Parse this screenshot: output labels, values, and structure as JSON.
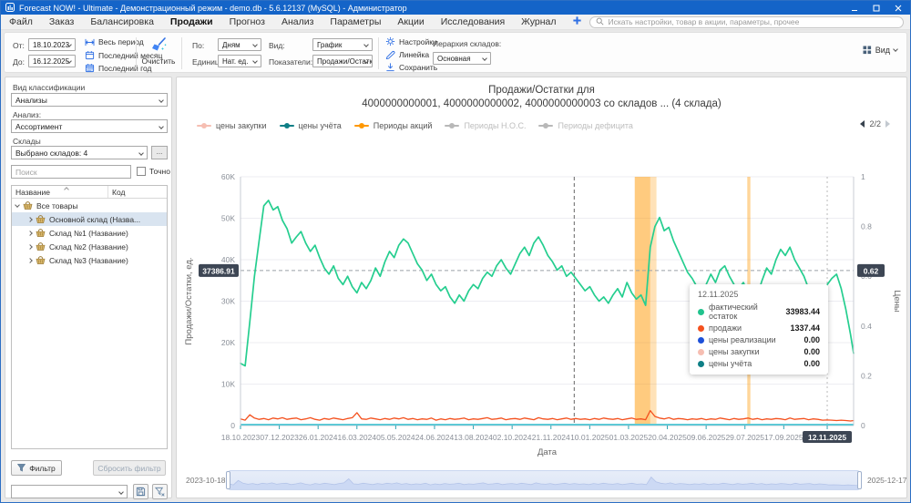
{
  "window": {
    "title": "Forecast NOW! - Ultimate - Демонстрационный режим - demo.db - 5.6.12137 (MySQL) - Администратор"
  },
  "menu": {
    "items": [
      "Файл",
      "Заказ",
      "Балансировка",
      "Продажи",
      "Прогноз",
      "Анализ",
      "Параметры",
      "Акции",
      "Исследования",
      "Журнал"
    ],
    "active_index": 3,
    "search_placeholder": "Искать настройки, товар в акции, параметры, прочее"
  },
  "toolbar": {
    "from_label": "От:",
    "from_value": "18.10.2023",
    "to_label": "До:",
    "to_value": "16.12.2025",
    "period_options": [
      "Весь период",
      "Последний месяц",
      "Последний год"
    ],
    "clear_label": "Очистить",
    "by_label": "По:",
    "by_value": "Дням",
    "units_label": "Единицы:",
    "units_value": "Нат. ед.",
    "view_label": "Вид:",
    "view_value": "График",
    "indicators_label": "Показатели:",
    "indicators_value": "Продажи/Остатки",
    "settings_label": "Настройки",
    "ruler_label": "Линейка",
    "save_label": "Сохранить",
    "hierarchy_label": "Иерархия складов:",
    "hierarchy_value": "Основная",
    "view_button": "Вид"
  },
  "sidebar": {
    "classification_label": "Вид классификации",
    "classification_value": "Анализы",
    "analysis_label": "Анализ:",
    "analysis_value": "Ассортимент",
    "warehouses_label": "Склады",
    "warehouses_value": "Выбрано складов: 4",
    "more_button": "...",
    "search_placeholder": "Поиск",
    "exact_label": "Точно",
    "tree": {
      "columns": [
        "Название",
        "Код"
      ],
      "root": "Все товары",
      "items": [
        "Основной склад (Назва...",
        "Склад №1 (Название)",
        "Склад №2 (Название)",
        "Склад №3 (Название)"
      ],
      "selected_index": 0
    },
    "filter_button": "Фильтр",
    "reset_filter_button": "Сбросить фильтр"
  },
  "chart": {
    "title_line1": "Продажи/Остатки для",
    "title_line2": "4000000000001, 4000000000002, 4000000000003 со складов ... (4 склада)",
    "legend": [
      {
        "label": "цены закупки",
        "color": "#f6beb2",
        "enabled": true
      },
      {
        "label": "цены учёта",
        "color": "#0e7f86",
        "enabled": true
      },
      {
        "label": "Периоды акций",
        "color": "#ff9800",
        "enabled": true
      },
      {
        "label": "Периоды Н.О.С.",
        "color": "#b8b8b8",
        "enabled": false
      },
      {
        "label": "Периоды дефицита",
        "color": "#b8b8b8",
        "enabled": false
      }
    ],
    "pagination": "2/2",
    "y_badge": "37386.91",
    "y2_badge": "0.62",
    "x_badge": "12.11.2025",
    "tooltip": {
      "title": "12.11.2025",
      "rows": [
        {
          "label": "фактический остаток",
          "value": "33983.44",
          "color": "#21c38d"
        },
        {
          "label": "продажи",
          "value": "1337.44",
          "color": "#f4511e"
        },
        {
          "label": "цены реализации",
          "value": "0.00",
          "color": "#1d50d8"
        },
        {
          "label": "цены закупки",
          "value": "0.00",
          "color": "#f6beb2"
        },
        {
          "label": "цены учёта",
          "value": "0.00",
          "color": "#0e7f86"
        }
      ]
    },
    "navigator": {
      "start": "2023-10-18",
      "end": "2025-12-17"
    }
  },
  "chart_data": {
    "type": "line",
    "title": "Продажи/Остатки для 4000000000001, 4000000000002, 4000000000003 со складов ... (4 склада)",
    "xlabel": "Дата",
    "ylabel": "Продажи/Остатки, ед.",
    "y2label": "Цены",
    "x_unit": "days since 18.10.2023",
    "x_domain": [
      0,
      790
    ],
    "ylim": [
      0,
      60000
    ],
    "y2lim": [
      0,
      1
    ],
    "y_ticks": [
      "0",
      "10K",
      "20K",
      "30K",
      "40K",
      "50K",
      "60K"
    ],
    "y2_ticks": [
      "0",
      "0.2",
      "0.4",
      "0.6",
      "0.8",
      "1"
    ],
    "x_ticks": [
      {
        "day": 0,
        "label": "18.10.2023"
      },
      {
        "day": 50,
        "label": "07.12.2023"
      },
      {
        "day": 100,
        "label": "26.01.2024"
      },
      {
        "day": 150,
        "label": "16.03.2024"
      },
      {
        "day": 200,
        "label": "05.05.2024"
      },
      {
        "day": 250,
        "label": "24.06.2024"
      },
      {
        "day": 300,
        "label": "13.08.2024"
      },
      {
        "day": 350,
        "label": "02.10.2024"
      },
      {
        "day": 400,
        "label": "21.11.2024"
      },
      {
        "day": 450,
        "label": "10.01.2025"
      },
      {
        "day": 500,
        "label": "01.03.2025"
      },
      {
        "day": 550,
        "label": "20.04.2025"
      },
      {
        "day": 600,
        "label": "09.06.2025"
      },
      {
        "day": 650,
        "label": "29.07.2025"
      },
      {
        "day": 700,
        "label": "17.09.2025"
      },
      {
        "day": 756,
        "label": "12.11.2025",
        "badge": true
      }
    ],
    "series": [
      {
        "name": "фактический остаток",
        "color": "#25ce8f",
        "width": 1.7,
        "step": 6,
        "units": "thousands",
        "values_k": [
          15.0,
          14.4,
          25,
          36,
          44.5,
          53,
          54.3,
          52,
          52.8,
          49.5,
          47.5,
          44,
          45.5,
          46.8,
          44,
          42,
          43.5,
          40.5,
          38,
          36.5,
          38.5,
          35.5,
          34,
          36,
          33.5,
          32,
          34.5,
          33,
          35,
          38,
          36,
          39.5,
          42,
          40.5,
          43.5,
          45,
          44,
          41.5,
          39,
          37.5,
          35,
          36.5,
          34,
          32.5,
          33.5,
          31,
          29.5,
          31.5,
          30,
          32.5,
          34,
          33,
          35.5,
          37,
          36,
          38.5,
          40,
          38,
          36.5,
          39,
          41.5,
          43,
          41,
          44,
          45.5,
          43.5,
          41,
          39.5,
          37.5,
          38.5,
          36,
          37,
          35.5,
          34,
          32.5,
          33.5,
          31.5,
          30,
          31,
          29.5,
          31.5,
          33,
          31,
          34.5,
          32,
          30.5,
          31.5,
          29,
          43,
          48,
          50.2,
          47,
          47.8,
          44.5,
          42,
          39.5,
          37,
          35.5,
          33.5,
          31.5,
          34,
          36.5,
          34.5,
          37.5,
          38.5,
          36,
          34,
          33,
          34.5,
          32,
          33.5,
          31.5,
          35,
          38,
          36.5,
          40,
          42.5,
          41,
          43,
          40,
          38,
          36,
          33,
          30,
          27.5,
          31,
          33.98,
          35.5,
          36.5,
          33,
          28,
          22,
          17.4
        ]
      },
      {
        "name": "продажи",
        "color": "#f4511e",
        "width": 1.3,
        "step": 6,
        "units": "thousands",
        "values_k": [
          1.6,
          1.3,
          2.6,
          1.8,
          1.5,
          1.7,
          1.4,
          1.8,
          1.6,
          1.9,
          1.5,
          1.7,
          1.8,
          1.4,
          1.6,
          1.9,
          1.5,
          1.3,
          1.7,
          1.5,
          1.8,
          1.6,
          1.4,
          1.7,
          1.9,
          3.1,
          1.6,
          1.5,
          1.8,
          1.6,
          1.4,
          1.7,
          1.5,
          1.8,
          1.6,
          1.9,
          1.5,
          1.7,
          1.4,
          1.6,
          1.5,
          1.8,
          1.3,
          1.6,
          1.4,
          1.7,
          1.5,
          1.6,
          1.8,
          1.4,
          1.6,
          1.5,
          1.7,
          1.9,
          1.5,
          1.6,
          1.8,
          1.4,
          1.6,
          1.7,
          1.5,
          1.8,
          1.6,
          1.4,
          1.9,
          1.6,
          1.5,
          1.7,
          1.4,
          1.6,
          1.8,
          1.5,
          1.7,
          1.5,
          1.6,
          1.4,
          1.7,
          1.5,
          1.8,
          1.6,
          1.5,
          1.7,
          1.4,
          1.6,
          1.8,
          1.5,
          1.6,
          1.4,
          3.6,
          2.2,
          1.8,
          1.6,
          1.9,
          1.5,
          1.7,
          1.6,
          1.4,
          1.6,
          1.5,
          1.7,
          1.4,
          1.6,
          1.5,
          1.8,
          1.6,
          1.4,
          1.7,
          1.5,
          1.6,
          1.8,
          1.5,
          1.7,
          1.4,
          1.6,
          1.5,
          1.7,
          1.6,
          1.4,
          1.8,
          1.5,
          1.6,
          1.7,
          1.4,
          1.6,
          1.5,
          1.3,
          1.34,
          1.3,
          1.2,
          1.3,
          1.2,
          1.1,
          1.2
        ]
      },
      {
        "name": "цены учёта",
        "color": "#5fc9d6",
        "const_value": 0
      },
      {
        "name": "цены реализации",
        "color": "#1d50d8",
        "const_value": 0
      }
    ],
    "promo_color": "#ff9800",
    "promo_bands": [
      {
        "from_day": 508,
        "to_day": 528,
        "opacity": 0.5
      },
      {
        "from_day": 528,
        "to_day": 536,
        "opacity": 0.28
      },
      {
        "from_day": 653,
        "to_day": 657,
        "opacity": 0.4
      }
    ],
    "dashed_vline_day": 430,
    "crosshair_day": 756,
    "hline_value": 37386.91,
    "legend_position": "top",
    "grid": "horizontal",
    "navigator_series": "продажи"
  }
}
